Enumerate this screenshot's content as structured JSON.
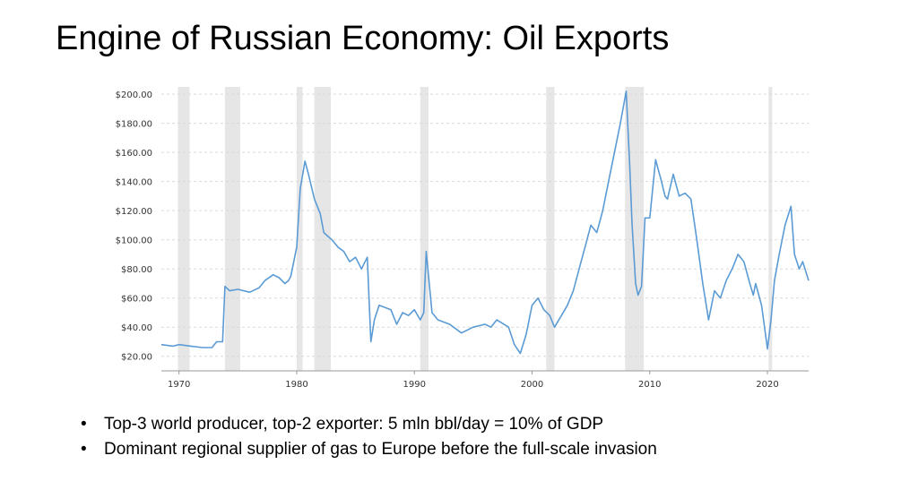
{
  "slide": {
    "title": "Engine of Russian Economy: Oil Exports"
  },
  "bullets": [
    "Top-3 world producer, top-2 exporter: 5 mln bbl/day = 10% of GDP",
    "Dominant regional supplier of gas to Europe before the full-scale invasion"
  ],
  "colors": {
    "line": "#5b9bd5",
    "recession_band": "#e6e6e6",
    "grid": "#d9d9d9"
  },
  "chart_data": {
    "type": "line",
    "title": "",
    "xlabel": "",
    "ylabel": "",
    "xlim": [
      1968.5,
      2023.5
    ],
    "ylim": [
      10,
      205
    ],
    "y_ticks": [
      20,
      40,
      60,
      80,
      100,
      120,
      140,
      160,
      180,
      200
    ],
    "y_tick_labels": [
      "$20.00",
      "$40.00",
      "$60.00",
      "$80.00",
      "$100.00",
      "$120.00",
      "$140.00",
      "$160.00",
      "$180.00",
      "$200.00"
    ],
    "x_ticks": [
      1970,
      1980,
      1990,
      2000,
      2010,
      2020
    ],
    "x_tick_labels": [
      "1970",
      "1980",
      "1990",
      "2000",
      "2010",
      "2020"
    ],
    "grid": "horizontal dashed",
    "recession_bands": [
      [
        1969.9,
        1970.9
      ],
      [
        1973.9,
        1975.2
      ],
      [
        1980.0,
        1980.5
      ],
      [
        1981.5,
        1982.9
      ],
      [
        1990.5,
        1991.2
      ],
      [
        2001.2,
        2001.9
      ],
      [
        2007.9,
        2009.5
      ],
      [
        2020.1,
        2020.4
      ]
    ],
    "series": [
      {
        "x": [
          1968.5,
          1969.5,
          1970.0,
          1971.0,
          1972.0,
          1972.8,
          1973.2,
          1973.7,
          1973.9,
          1974.3,
          1975.0,
          1976.0,
          1976.8,
          1977.3,
          1978.0,
          1978.5,
          1979.0,
          1979.3,
          1979.5,
          1980.0,
          1980.3,
          1980.7,
          1981.0,
          1981.5,
          1982.0,
          1982.3,
          1982.7,
          1983.0,
          1983.5,
          1984.0,
          1984.5,
          1985.0,
          1985.5,
          1986.0,
          1986.3,
          1986.6,
          1987.0,
          1988.0,
          1988.5,
          1989.0,
          1989.5,
          1990.0,
          1990.5,
          1990.8,
          1991.0,
          1991.5,
          1992.0,
          1993.0,
          1994.0,
          1995.0,
          1996.0,
          1996.5,
          1997.0,
          1998.0,
          1998.5,
          1999.0,
          1999.5,
          2000.0,
          2000.5,
          2001.0,
          2001.5,
          2001.9,
          2002.5,
          2003.0,
          2003.5,
          2004.0,
          2004.5,
          2005.0,
          2005.5,
          2006.0,
          2006.5,
          2007.0,
          2007.5,
          2008.0,
          2008.3,
          2008.5,
          2008.8,
          2009.0,
          2009.3,
          2009.6,
          2010.0,
          2010.5,
          2011.0,
          2011.3,
          2011.5,
          2012.0,
          2012.5,
          2013.0,
          2013.5,
          2014.0,
          2014.5,
          2014.8,
          2015.0,
          2015.5,
          2016.0,
          2016.5,
          2017.0,
          2017.5,
          2018.0,
          2018.5,
          2018.8,
          2019.0,
          2019.5,
          2020.0,
          2020.3,
          2020.6,
          2021.0,
          2021.5,
          2022.0,
          2022.3,
          2022.7,
          2023.0,
          2023.5
        ],
        "values": [
          28,
          27,
          28,
          27,
          26,
          26,
          30,
          30,
          68,
          65,
          66,
          64,
          67,
          72,
          76,
          74,
          70,
          72,
          75,
          95,
          135,
          154,
          145,
          128,
          118,
          105,
          102,
          100,
          95,
          92,
          85,
          88,
          80,
          88,
          30,
          45,
          55,
          52,
          42,
          50,
          48,
          52,
          45,
          50,
          92,
          50,
          45,
          42,
          36,
          40,
          42,
          40,
          45,
          40,
          28,
          22,
          35,
          55,
          60,
          52,
          48,
          40,
          48,
          55,
          65,
          80,
          95,
          110,
          105,
          120,
          140,
          160,
          180,
          202,
          150,
          110,
          70,
          62,
          68,
          115,
          115,
          155,
          140,
          130,
          128,
          145,
          130,
          132,
          128,
          100,
          70,
          55,
          45,
          65,
          60,
          72,
          80,
          90,
          85,
          70,
          62,
          70,
          55,
          25,
          45,
          72,
          90,
          110,
          123,
          90,
          80,
          85,
          72
        ]
      }
    ]
  }
}
